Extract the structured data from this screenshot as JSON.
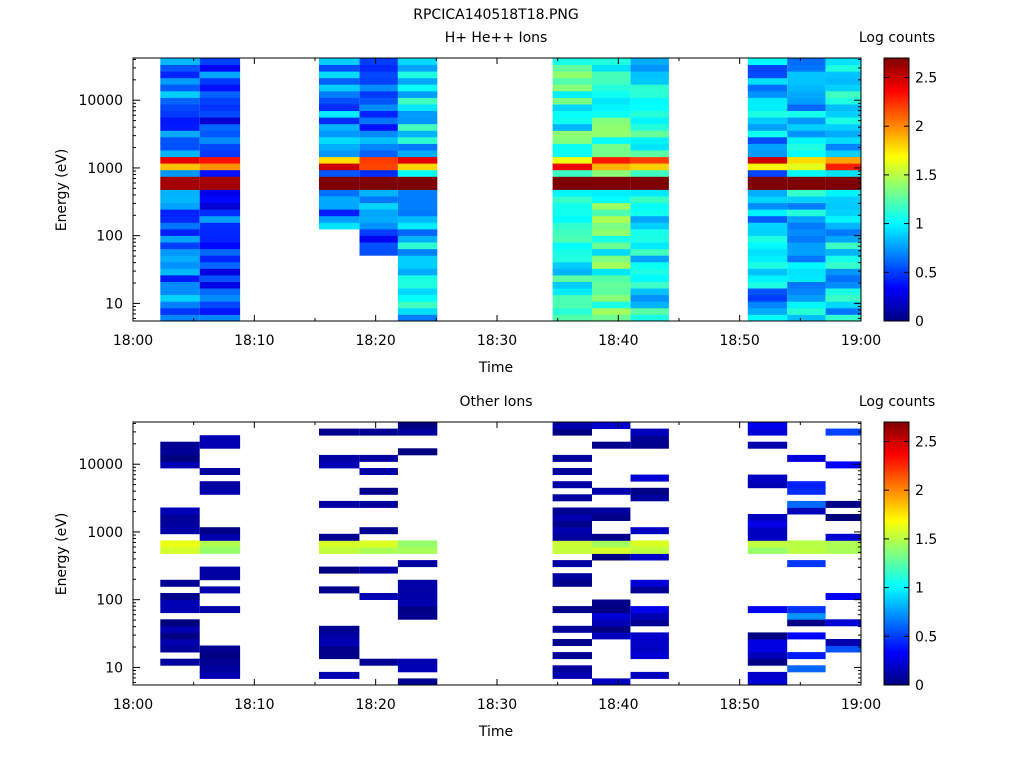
{
  "figure_title": "RPCICA140518T18.PNG",
  "colors": {
    "colormap": [
      "#00007f",
      "#0000ff",
      "#007fff",
      "#00ffff",
      "#7fff7f",
      "#ffff00",
      "#ff7f00",
      "#ff0000",
      "#7f0000"
    ]
  },
  "chart_data": [
    {
      "type": "heatmap",
      "title": "H+ He++ Ions",
      "xlabel": "Time",
      "ylabel": "Energy (eV)",
      "x_ticks": [
        "18:00",
        "18:10",
        "18:20",
        "18:30",
        "18:40",
        "18:50",
        "19:00"
      ],
      "y_ticks": [
        "10",
        "100",
        "1000",
        "10000"
      ],
      "y_scale": "log",
      "ylim": [
        5.5,
        42000
      ],
      "xlim": [
        "18:00",
        "19:00"
      ],
      "colorbar": {
        "label": "Log counts",
        "range": [
          0,
          2.7
        ],
        "ticks": [
          "0",
          "0.5",
          "1",
          "1.5",
          "2",
          "2.5"
        ]
      },
      "time_columns": [
        {
          "start": "18:02:15",
          "end": "18:05:30",
          "dominant_log_counts": 0.6,
          "band_peak": 2.6,
          "low_energy_floor_eV": 5.5
        },
        {
          "start": "18:05:30",
          "end": "18:08:50",
          "dominant_log_counts": 0.5,
          "band_peak": 2.6,
          "low_energy_floor_eV": 5.5
        },
        {
          "start": "18:15:20",
          "end": "18:18:40",
          "dominant_log_counts": 0.7,
          "band_peak": 2.7,
          "low_energy_floor_eV": 130
        },
        {
          "start": "18:18:40",
          "end": "18:21:50",
          "dominant_log_counts": 0.6,
          "band_peak": 2.7,
          "low_energy_floor_eV": 55
        },
        {
          "start": "18:21:50",
          "end": "18:25:05",
          "dominant_log_counts": 0.9,
          "band_peak": 2.7,
          "low_energy_floor_eV": 5.5
        },
        {
          "start": "18:34:35",
          "end": "18:37:50",
          "dominant_log_counts": 1.1,
          "band_peak": 2.7,
          "low_energy_floor_eV": 5.5
        },
        {
          "start": "18:37:50",
          "end": "18:41:00",
          "dominant_log_counts": 1.2,
          "band_peak": 2.7,
          "low_energy_floor_eV": 5.5
        },
        {
          "start": "18:41:00",
          "end": "18:44:10",
          "dominant_log_counts": 1.0,
          "band_peak": 2.7,
          "low_energy_floor_eV": 5.5
        },
        {
          "start": "18:50:40",
          "end": "18:53:55",
          "dominant_log_counts": 0.8,
          "band_peak": 2.7,
          "low_energy_floor_eV": 5.5
        },
        {
          "start": "18:53:55",
          "end": "18:57:05",
          "dominant_log_counts": 0.9,
          "band_peak": 2.7,
          "low_energy_floor_eV": 5.5
        },
        {
          "start": "18:57:05",
          "end": "19:00:00",
          "dominant_log_counts": 0.9,
          "band_peak": 2.7,
          "low_energy_floor_eV": 5.5
        }
      ],
      "annotations": [
        "Strong band near 500-700 eV (log counts ~2.6-2.7)",
        "Secondary band near 1100-1300 eV (log counts ~1.5-2.5)"
      ]
    },
    {
      "type": "heatmap",
      "title": "Other Ions",
      "xlabel": "Time",
      "ylabel": "Energy (eV)",
      "x_ticks": [
        "18:00",
        "18:10",
        "18:20",
        "18:30",
        "18:40",
        "18:50",
        "19:00"
      ],
      "y_ticks": [
        "10",
        "100",
        "1000",
        "10000"
      ],
      "y_scale": "log",
      "ylim": [
        5.5,
        42000
      ],
      "xlim": [
        "18:00",
        "19:00"
      ],
      "colorbar": {
        "label": "Log counts",
        "range": [
          0,
          2.7
        ],
        "ticks": [
          "0",
          "0.5",
          "1",
          "1.5",
          "2",
          "2.5"
        ]
      },
      "time_columns": [
        {
          "start": "18:02:15",
          "end": "18:05:30",
          "dominant_log_counts": 0.1
        },
        {
          "start": "18:05:30",
          "end": "18:08:50",
          "dominant_log_counts": 0.1
        },
        {
          "start": "18:15:20",
          "end": "18:18:40",
          "dominant_log_counts": 0.1
        },
        {
          "start": "18:18:40",
          "end": "18:21:50",
          "dominant_log_counts": 0.1
        },
        {
          "start": "18:21:50",
          "end": "18:25:05",
          "dominant_log_counts": 0.1
        },
        {
          "start": "18:34:35",
          "end": "18:37:50",
          "dominant_log_counts": 0.1
        },
        {
          "start": "18:37:50",
          "end": "18:41:00",
          "dominant_log_counts": 0.2
        },
        {
          "start": "18:41:00",
          "end": "18:44:10",
          "dominant_log_counts": 0.2
        },
        {
          "start": "18:50:40",
          "end": "18:53:55",
          "dominant_log_counts": 0.2
        },
        {
          "start": "18:53:55",
          "end": "18:57:05",
          "dominant_log_counts": 0.5
        },
        {
          "start": "18:57:05",
          "end": "19:00:00",
          "dominant_log_counts": 0.4
        }
      ],
      "annotations": [
        "Band near 550-650 eV (log counts ~1.3-1.6)"
      ]
    }
  ]
}
